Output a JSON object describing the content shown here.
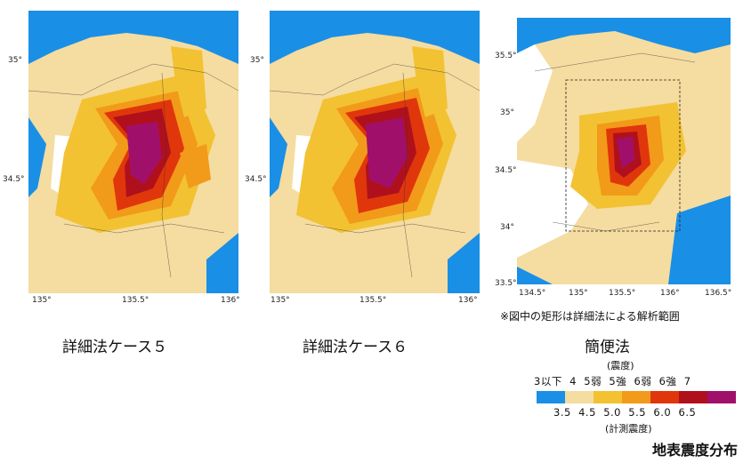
{
  "figure_title": "地表震度分布",
  "panels": [
    {
      "caption": "詳細法ケース５",
      "x_ticks": [
        "135°",
        "135.5°",
        "136°"
      ],
      "y_ticks": [
        "35°",
        "34.5°"
      ]
    },
    {
      "caption": "詳細法ケース６",
      "x_ticks": [
        "135°",
        "135.5°",
        "136°"
      ],
      "y_ticks": [
        "35°",
        "34.5°"
      ]
    },
    {
      "caption": "簡便法",
      "x_ticks": [
        "134.5°",
        "135°",
        "135.5°",
        "136°",
        "136.5°"
      ],
      "y_ticks": [
        "35.5°",
        "35°",
        "34.5°",
        "34°",
        "33.5°"
      ],
      "note": "※図中の矩形は詳細法による解析範囲"
    }
  ],
  "legend": {
    "intensity_title": "(震度)",
    "intensity_row": "3以下  4  5弱  5強  6弱  6強  7",
    "measured_title": "(計測震度)",
    "measured_row": "3.5  4.5  5.0  5.5  6.0  6.5",
    "colors": [
      "#1a8fe6",
      "#f5dca0",
      "#f2c233",
      "#f29a1a",
      "#e0360c",
      "#b0101c",
      "#a0106a"
    ]
  }
}
